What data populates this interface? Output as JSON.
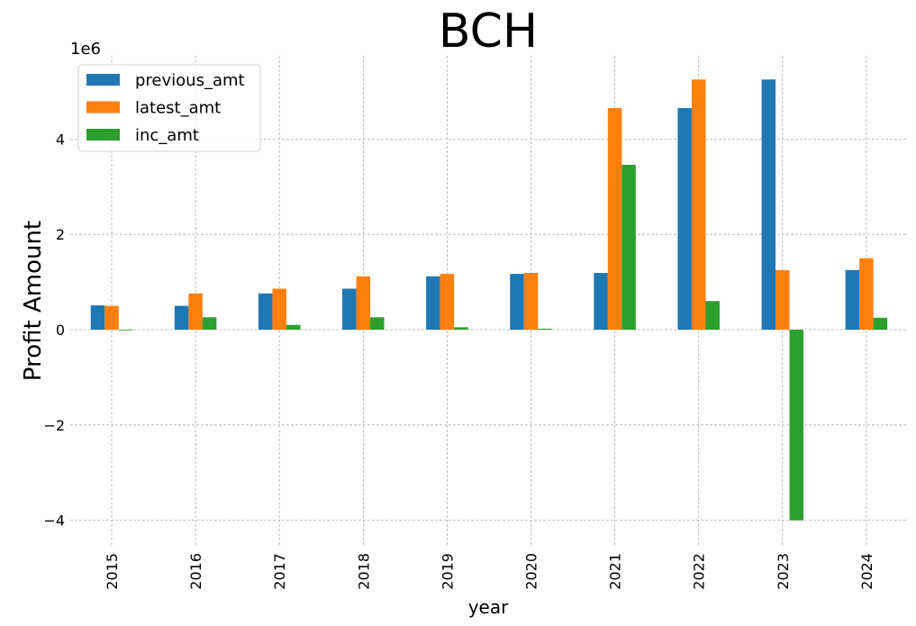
{
  "chart_data": {
    "type": "bar",
    "title": "BCH",
    "xlabel": "year",
    "ylabel": "Profit Amount",
    "y_offset_label": "1e6",
    "categories": [
      "2015",
      "2016",
      "2017",
      "2018",
      "2019",
      "2020",
      "2021",
      "2022",
      "2023",
      "2024"
    ],
    "series": [
      {
        "name": "previous_amt",
        "color": "#1f77b4",
        "values": [
          510000,
          500000,
          760000,
          860000,
          1120000,
          1170000,
          1190000,
          4650000,
          5250000,
          1250000
        ]
      },
      {
        "name": "latest_amt",
        "color": "#ff7f0e",
        "values": [
          500000,
          760000,
          860000,
          1120000,
          1170000,
          1190000,
          4650000,
          5250000,
          1250000,
          1500000
        ]
      },
      {
        "name": "inc_amt",
        "color": "#2ca02c",
        "values": [
          -10000,
          260000,
          100000,
          260000,
          50000,
          20000,
          3460000,
          600000,
          -4000000,
          250000
        ]
      }
    ],
    "ylim": [
      -4400000,
      5800000
    ],
    "yticks": [
      -4000000,
      -2000000,
      0,
      2000000,
      4000000
    ],
    "ytick_labels": [
      "−4",
      "−2",
      "0",
      "2",
      "4"
    ],
    "grid": true,
    "legend_position": "top-left"
  }
}
